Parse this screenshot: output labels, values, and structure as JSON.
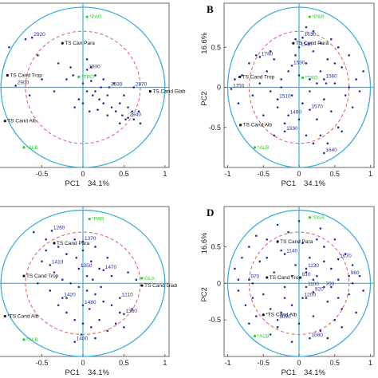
{
  "chart_data": [
    {
      "panel": "A",
      "type": "scatter",
      "panel_letter": "",
      "xlabel": "PC1",
      "x_explained": "34.1%",
      "ylabel": "",
      "y_explained": "",
      "xlim": [
        -1.05,
        1.05
      ],
      "ylim": [
        -1.0,
        1.05
      ],
      "x_ticks": [
        "-0.5",
        "0",
        "0.5",
        "1"
      ],
      "y_ticks": [],
      "variables": [
        {
          "name": "*PAR",
          "x": 0.05,
          "y": 0.88,
          "color": "#2ecc2e"
        },
        {
          "name": "TS Can Para",
          "x": -0.25,
          "y": 0.55,
          "color": "#111111"
        },
        {
          "name": "*TRO",
          "x": -0.05,
          "y": 0.13,
          "color": "#2ecc2e"
        },
        {
          "name": "TS Cand Trop",
          "x": -0.92,
          "y": 0.15,
          "color": "#111111"
        },
        {
          "name": "TS Cand Glab",
          "x": 0.82,
          "y": -0.05,
          "color": "#111111"
        },
        {
          "name": "TS Cand Alb",
          "x": -0.95,
          "y": -0.42,
          "color": "#111111"
        },
        {
          "name": "*ALB",
          "x": -0.72,
          "y": -0.75,
          "color": "#2ecc2e"
        }
      ],
      "observations": [
        {
          "label": "2920",
          "x": -0.62,
          "y": 0.62
        },
        {
          "label": "2900",
          "x": -0.82,
          "y": 0.02
        },
        {
          "label": "3000",
          "x": 0.05,
          "y": 0.22
        },
        {
          "label": "3030",
          "x": 0.32,
          "y": 0.0
        },
        {
          "label": "2870",
          "x": 0.62,
          "y": 0.0
        },
        {
          "label": "2940",
          "x": 0.55,
          "y": -0.38
        }
      ],
      "points": [
        [
          -0.9,
          0.5
        ],
        [
          -0.7,
          0.6
        ],
        [
          -0.55,
          0.4
        ],
        [
          -0.3,
          0.3
        ],
        [
          -0.2,
          0.1
        ],
        [
          -0.12,
          0.15
        ],
        [
          0.0,
          0.05
        ],
        [
          0.05,
          -0.05
        ],
        [
          0.1,
          0.08
        ],
        [
          0.12,
          -0.1
        ],
        [
          0.15,
          -0.05
        ],
        [
          0.2,
          -0.15
        ],
        [
          0.22,
          0.0
        ],
        [
          0.25,
          -0.2
        ],
        [
          0.3,
          -0.1
        ],
        [
          0.35,
          -0.25
        ],
        [
          0.38,
          0.05
        ],
        [
          0.4,
          -0.3
        ],
        [
          0.45,
          -0.2
        ],
        [
          0.48,
          -0.35
        ],
        [
          0.5,
          -0.1
        ],
        [
          0.55,
          -0.25
        ],
        [
          0.6,
          -0.3
        ],
        [
          0.62,
          -0.4
        ],
        [
          0.68,
          -0.3
        ],
        [
          0.7,
          -0.45
        ],
        [
          0.05,
          0.35
        ],
        [
          0.1,
          0.25
        ],
        [
          -0.05,
          -0.15
        ],
        [
          0.0,
          -0.2
        ],
        [
          -0.1,
          -0.25
        ],
        [
          -0.35,
          -0.05
        ],
        [
          -0.5,
          0.1
        ],
        [
          -0.65,
          -0.1
        ],
        [
          0.15,
          0.15
        ],
        [
          0.25,
          0.1
        ],
        [
          0.3,
          -0.35
        ],
        [
          0.45,
          -0.45
        ],
        [
          0.52,
          -0.4
        ],
        [
          -0.15,
          0.25
        ],
        [
          0.08,
          -0.3
        ],
        [
          0.18,
          -0.28
        ]
      ],
      "unit_circle_radius": 1.0,
      "inner_circle_radius": 0.7,
      "grid": false
    },
    {
      "panel": "B",
      "type": "scatter",
      "panel_letter": "B",
      "xlabel": "PC1",
      "x_explained": "34.1%",
      "ylabel": "PC2",
      "y_explained": "16.6%",
      "xlim": [
        -1.05,
        1.05
      ],
      "ylim": [
        -1.0,
        1.05
      ],
      "x_ticks": [
        "-1",
        "-0.5",
        "0",
        "0.5",
        "1"
      ],
      "y_ticks": [
        "0.5",
        "0",
        "-0.5"
      ],
      "variables": [
        {
          "name": "*PAR",
          "x": 0.15,
          "y": 0.88,
          "color": "#2ecc2e"
        },
        {
          "name": "TS Cand Para",
          "x": -0.08,
          "y": 0.55,
          "color": "#111111"
        },
        {
          "name": "TS Cand Trop",
          "x": -0.83,
          "y": 0.13,
          "color": "#111111"
        },
        {
          "name": "*TRO",
          "x": 0.05,
          "y": 0.12,
          "color": "#2ecc2e"
        },
        {
          "name": "TS Cand Alb",
          "x": -0.82,
          "y": -0.47,
          "color": "#111111"
        },
        {
          "name": "*ALB",
          "x": -0.62,
          "y": -0.75,
          "color": "#2ecc2e"
        }
      ],
      "observations": [
        {
          "label": "1630",
          "x": 0.05,
          "y": 0.62
        },
        {
          "label": "1540",
          "x": 0.0,
          "y": 0.5
        },
        {
          "label": "1740",
          "x": -0.55,
          "y": 0.38
        },
        {
          "label": "1530",
          "x": -0.1,
          "y": 0.27
        },
        {
          "label": "1750",
          "x": -0.95,
          "y": -0.02
        },
        {
          "label": "1560",
          "x": 0.35,
          "y": 0.1
        },
        {
          "label": "1510",
          "x": -0.3,
          "y": -0.15
        },
        {
          "label": "1570",
          "x": 0.15,
          "y": -0.28
        },
        {
          "label": "1480",
          "x": -0.15,
          "y": -0.35
        },
        {
          "label": "1590",
          "x": -0.2,
          "y": -0.55
        },
        {
          "label": "1640",
          "x": 0.35,
          "y": -0.82
        }
      ],
      "points": [
        [
          -0.9,
          0.1
        ],
        [
          -0.85,
          -0.2
        ],
        [
          -0.7,
          0.3
        ],
        [
          -0.65,
          -0.1
        ],
        [
          -0.55,
          0.05
        ],
        [
          -0.5,
          -0.35
        ],
        [
          -0.45,
          0.2
        ],
        [
          -0.4,
          -0.05
        ],
        [
          -0.35,
          0.35
        ],
        [
          -0.3,
          -0.25
        ],
        [
          -0.25,
          0.1
        ],
        [
          -0.2,
          -0.45
        ],
        [
          -0.15,
          0.2
        ],
        [
          -0.1,
          -0.1
        ],
        [
          -0.05,
          0.4
        ],
        [
          0.0,
          0.15
        ],
        [
          0.05,
          -0.2
        ],
        [
          0.1,
          0.3
        ],
        [
          0.15,
          -0.05
        ],
        [
          0.2,
          0.45
        ],
        [
          0.25,
          -0.4
        ],
        [
          0.3,
          0.2
        ],
        [
          0.35,
          -0.15
        ],
        [
          0.4,
          0.35
        ],
        [
          0.45,
          -0.3
        ],
        [
          0.5,
          0.05
        ],
        [
          0.55,
          -0.5
        ],
        [
          0.6,
          0.25
        ],
        [
          0.65,
          -0.1
        ],
        [
          0.7,
          0.4
        ],
        [
          0.75,
          -0.25
        ],
        [
          0.8,
          0.1
        ],
        [
          0.85,
          -0.05
        ],
        [
          0.9,
          0.2
        ],
        [
          0.2,
          0.7
        ],
        [
          0.1,
          0.75
        ],
        [
          -0.05,
          0.6
        ],
        [
          0.3,
          0.55
        ],
        [
          0.45,
          0.6
        ],
        [
          0.55,
          0.5
        ],
        [
          -0.6,
          0.4
        ],
        [
          -0.8,
          0.15
        ],
        [
          0.1,
          -0.6
        ],
        [
          0.2,
          -0.7
        ],
        [
          0.3,
          -0.6
        ],
        [
          -0.35,
          -0.6
        ],
        [
          0.4,
          -0.7
        ],
        [
          0.6,
          -0.55
        ],
        [
          0.7,
          0.0
        ],
        [
          0.25,
          0.05
        ],
        [
          -0.25,
          0.0
        ],
        [
          0.15,
          0.1
        ],
        [
          0.38,
          0.05
        ],
        [
          -0.4,
          0.45
        ],
        [
          0.0,
          -0.4
        ],
        [
          0.5,
          0.3
        ]
      ],
      "unit_circle_radius": 1.0,
      "inner_circle_radius": 0.7,
      "grid": false
    },
    {
      "panel": "C",
      "type": "scatter",
      "panel_letter": "",
      "xlabel": "PC1",
      "x_explained": "34.1%",
      "ylabel": "",
      "y_explained": "",
      "xlim": [
        -1.05,
        1.05
      ],
      "ylim": [
        -1.0,
        1.05
      ],
      "x_ticks": [
        "-0.5",
        "0",
        "0.5",
        "1"
      ],
      "y_ticks": [],
      "variables": [
        {
          "name": "*PAR",
          "x": 0.08,
          "y": 0.88,
          "color": "#2ecc2e"
        },
        {
          "name": "TS Cand Para",
          "x": -0.35,
          "y": 0.55,
          "color": "#111111"
        },
        {
          "name": "TS Cand Trop",
          "x": -0.72,
          "y": 0.1,
          "color": "#111111"
        },
        {
          "name": "GLA",
          "x": 0.72,
          "y": 0.07,
          "color": "#2ecc2e"
        },
        {
          "name": "TS Cand Glab",
          "x": 0.72,
          "y": -0.03,
          "color": "#111111"
        },
        {
          "name": "*TS Cand Alb",
          "x": -0.95,
          "y": -0.45,
          "color": "#111111"
        },
        {
          "name": "*ALB",
          "x": -0.72,
          "y": -0.77,
          "color": "#2ecc2e"
        }
      ],
      "observations": [
        {
          "label": "1260",
          "x": -0.38,
          "y": 0.72
        },
        {
          "label": "1370",
          "x": 0.0,
          "y": 0.57
        },
        {
          "label": "1410",
          "x": -0.4,
          "y": 0.25
        },
        {
          "label": "1470",
          "x": 0.25,
          "y": 0.18
        },
        {
          "label": "1350",
          "x": -0.05,
          "y": 0.2
        },
        {
          "label": "1420",
          "x": -0.25,
          "y": -0.2
        },
        {
          "label": "1210",
          "x": 0.45,
          "y": -0.2
        },
        {
          "label": "1480",
          "x": 0.0,
          "y": -0.3
        },
        {
          "label": "1360",
          "x": 0.5,
          "y": -0.42
        },
        {
          "label": "1400",
          "x": -0.1,
          "y": -0.8
        }
      ],
      "points": [
        [
          -0.6,
          0.7
        ],
        [
          -0.45,
          0.6
        ],
        [
          -0.3,
          0.5
        ],
        [
          -0.2,
          0.4
        ],
        [
          -0.1,
          0.6
        ],
        [
          0.0,
          0.45
        ],
        [
          0.1,
          0.3
        ],
        [
          0.15,
          0.5
        ],
        [
          0.2,
          0.2
        ],
        [
          0.3,
          0.35
        ],
        [
          -0.5,
          0.3
        ],
        [
          -0.35,
          0.15
        ],
        [
          -0.25,
          0.05
        ],
        [
          -0.15,
          0.0
        ],
        [
          -0.05,
          -0.05
        ],
        [
          0.05,
          -0.1
        ],
        [
          0.15,
          -0.15
        ],
        [
          0.25,
          -0.25
        ],
        [
          0.35,
          -0.3
        ],
        [
          0.45,
          -0.4
        ],
        [
          -0.3,
          -0.3
        ],
        [
          -0.2,
          -0.4
        ],
        [
          -0.1,
          -0.5
        ],
        [
          0.0,
          -0.55
        ],
        [
          0.1,
          -0.6
        ],
        [
          0.2,
          -0.5
        ],
        [
          0.3,
          -0.65
        ],
        [
          0.4,
          -0.55
        ],
        [
          0.5,
          -0.6
        ],
        [
          0.6,
          -0.35
        ],
        [
          -0.4,
          -0.1
        ],
        [
          -0.55,
          0.0
        ],
        [
          0.05,
          0.1
        ],
        [
          0.12,
          0.05
        ],
        [
          -0.08,
          0.35
        ],
        [
          0.35,
          0.1
        ],
        [
          0.55,
          0.15
        ],
        [
          0.65,
          0.05
        ],
        [
          -0.45,
          0.45
        ],
        [
          -0.2,
          -0.2
        ],
        [
          0.08,
          -0.35
        ],
        [
          0.22,
          -0.05
        ],
        [
          -0.02,
          -0.7
        ],
        [
          0.15,
          -0.75
        ]
      ],
      "unit_circle_radius": 1.0,
      "inner_circle_radius": 0.7,
      "grid": false
    },
    {
      "panel": "D",
      "type": "scatter",
      "panel_letter": "D",
      "xlabel": "PC1",
      "x_explained": "34.1%",
      "ylabel": "PC2",
      "y_explained": "16.6%",
      "xlim": [
        -1.05,
        1.05
      ],
      "ylim": [
        -1.0,
        1.05
      ],
      "x_ticks": [
        "-1",
        "-0.5",
        "0",
        "0.5",
        "1"
      ],
      "y_ticks": [
        "0.5",
        "0",
        "-0.5"
      ],
      "variables": [
        {
          "name": "*PAR",
          "x": 0.15,
          "y": 0.9,
          "color": "#2ecc2e"
        },
        {
          "name": "TS Cand Para",
          "x": -0.3,
          "y": 0.57,
          "color": "#111111"
        },
        {
          "name": "TS Cand Trop",
          "x": -0.45,
          "y": 0.08,
          "color": "#111111"
        },
        {
          "name": "*TS Cand Alb",
          "x": -0.5,
          "y": -0.43,
          "color": "#111111"
        },
        {
          "name": "*ALB",
          "x": -0.62,
          "y": -0.72,
          "color": "#2ecc2e"
        }
      ],
      "observations": [
        {
          "label": "1140",
          "x": -0.2,
          "y": 0.4
        },
        {
          "label": "1130",
          "x": 0.1,
          "y": 0.2
        },
        {
          "label": "1070",
          "x": 0.55,
          "y": 0.33
        },
        {
          "label": "970",
          "x": -0.7,
          "y": 0.05
        },
        {
          "label": "810",
          "x": 0.02,
          "y": 0.08
        },
        {
          "label": "1100",
          "x": 0.1,
          "y": -0.05
        },
        {
          "label": "700",
          "x": 0.35,
          "y": -0.05
        },
        {
          "label": "920",
          "x": 0.2,
          "y": -0.12
        },
        {
          "label": "1200",
          "x": 0.05,
          "y": -0.2
        },
        {
          "label": "1090",
          "x": -0.3,
          "y": -0.5
        },
        {
          "label": "1080",
          "x": 0.15,
          "y": -0.75
        },
        {
          "label": "960",
          "x": 0.7,
          "y": 0.1
        }
      ],
      "points": [
        [
          -0.9,
          0.2
        ],
        [
          -0.85,
          -0.1
        ],
        [
          -0.8,
          0.35
        ],
        [
          -0.75,
          -0.3
        ],
        [
          -0.7,
          0.5
        ],
        [
          -0.65,
          0.0
        ],
        [
          -0.6,
          -0.45
        ],
        [
          -0.55,
          0.3
        ],
        [
          -0.5,
          -0.15
        ],
        [
          -0.45,
          0.6
        ],
        [
          -0.4,
          -0.35
        ],
        [
          -0.35,
          0.15
        ],
        [
          -0.3,
          -0.6
        ],
        [
          -0.25,
          0.45
        ],
        [
          -0.2,
          -0.05
        ],
        [
          -0.15,
          0.7
        ],
        [
          -0.1,
          -0.3
        ],
        [
          -0.05,
          0.25
        ],
        [
          0.0,
          -0.55
        ],
        [
          0.05,
          0.55
        ],
        [
          0.1,
          -0.2
        ],
        [
          0.15,
          0.35
        ],
        [
          0.2,
          -0.45
        ],
        [
          0.25,
          0.1
        ],
        [
          0.3,
          -0.65
        ],
        [
          0.35,
          0.5
        ],
        [
          0.4,
          -0.25
        ],
        [
          0.45,
          0.2
        ],
        [
          0.5,
          -0.5
        ],
        [
          0.55,
          0.05
        ],
        [
          0.6,
          -0.35
        ],
        [
          0.65,
          0.4
        ],
        [
          0.7,
          -0.15
        ],
        [
          0.75,
          0.25
        ],
        [
          0.8,
          -0.4
        ],
        [
          0.85,
          0.1
        ],
        [
          0.9,
          -0.1
        ],
        [
          -0.6,
          0.65
        ],
        [
          -0.3,
          0.8
        ],
        [
          0.0,
          0.85
        ],
        [
          0.3,
          0.75
        ],
        [
          0.5,
          0.6
        ],
        [
          0.6,
          -0.6
        ],
        [
          0.4,
          -0.75
        ],
        [
          -0.1,
          -0.8
        ],
        [
          -0.4,
          -0.7
        ],
        [
          -0.7,
          -0.55
        ],
        [
          -0.85,
          0.05
        ],
        [
          0.2,
          0.05
        ],
        [
          -0.1,
          0.1
        ],
        [
          0.1,
          0.15
        ],
        [
          -0.2,
          -0.2
        ],
        [
          0.35,
          0.3
        ],
        [
          -0.45,
          0.35
        ],
        [
          0.55,
          -0.2
        ],
        [
          0.75,
          0.0
        ],
        [
          -0.65,
          -0.2
        ],
        [
          0.25,
          0.6
        ],
        [
          -0.25,
          -0.4
        ],
        [
          0.45,
          -0.05
        ]
      ],
      "unit_circle_radius": 1.0,
      "inner_circle_radius": 0.7,
      "grid": false
    }
  ]
}
